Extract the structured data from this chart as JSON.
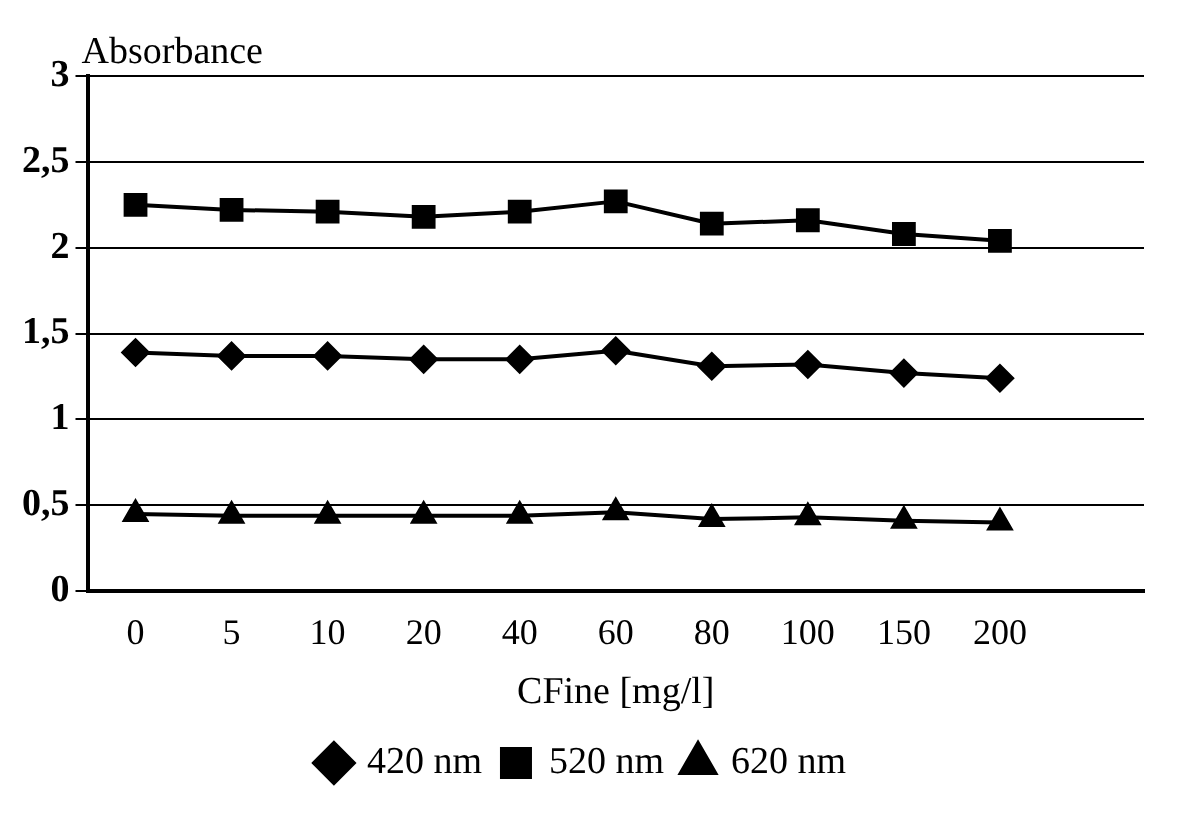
{
  "chart_data": {
    "type": "line",
    "xlabel": "CFine [mg/l]",
    "ylabel": "Absorbance",
    "categories": [
      "0",
      "5",
      "10",
      "20",
      "40",
      "60",
      "80",
      "100",
      "150",
      "200",
      null
    ],
    "series": [
      {
        "name": "420 nm",
        "color": "#000000",
        "marker": "diamond",
        "values": [
          1.39,
          1.37,
          1.37,
          1.35,
          1.35,
          1.4,
          1.31,
          1.32,
          1.27,
          1.24,
          null
        ]
      },
      {
        "name": "520 nm",
        "color": "#000000",
        "marker": "square",
        "values": [
          2.25,
          2.22,
          2.21,
          2.18,
          2.21,
          2.27,
          2.14,
          2.16,
          2.08,
          2.04,
          null
        ]
      },
      {
        "name": "620 nm",
        "color": "#000000",
        "marker": "triangle",
        "values": [
          0.45,
          0.44,
          0.44,
          0.44,
          0.44,
          0.46,
          0.42,
          0.43,
          0.41,
          0.4,
          null
        ]
      }
    ],
    "ylim": [
      0,
      3
    ],
    "yticks": [
      0,
      {
        "value": 0.5,
        "label": "0,5"
      },
      1,
      {
        "value": 1.5,
        "label": "1,5"
      },
      2,
      {
        "value": 2.5,
        "label": "2,5"
      },
      3
    ],
    "grid": "y",
    "legend": "bottom",
    "line_style": "solid"
  }
}
